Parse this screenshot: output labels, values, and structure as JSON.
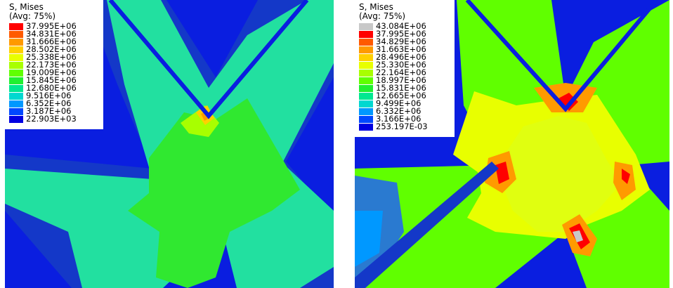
{
  "panels": [
    {
      "legend": {
        "title_line1": "S, Mises",
        "title_line2": "(Avg: 75%)",
        "labels": [
          "37.995E+06",
          "34.831E+06",
          "31.666E+06",
          "28.502E+06",
          "25.338E+06",
          "22.173E+06",
          "19.009E+06",
          "15.845E+06",
          "12.680E+06",
          "9.516E+06",
          "6.352E+06",
          "3.187E+06",
          "22.903E+03"
        ],
        "colors": [
          "#ff0000",
          "#ff5a00",
          "#ff9a00",
          "#ffd000",
          "#e8ff00",
          "#a8ff00",
          "#60ff00",
          "#20f030",
          "#00e890",
          "#00d8d0",
          "#0098ff",
          "#0048ff",
          "#0000e0"
        ]
      }
    },
    {
      "legend": {
        "title_line1": "S, Mises",
        "title_line2": "(Avg: 75%)",
        "labels": [
          "43.084E+06",
          "37.995E+06",
          "34.829E+06",
          "31.663E+06",
          "28.496E+06",
          "25.330E+06",
          "22.164E+06",
          "18.997E+06",
          "15.831E+06",
          "12.665E+06",
          "9.499E+06",
          "6.332E+06",
          "3.166E+06",
          "253.197E-03"
        ],
        "colors": [
          "#c8c8c8",
          "#ff0000",
          "#ff5a00",
          "#ff9a00",
          "#ffd000",
          "#e8ff00",
          "#a8ff00",
          "#60ff00",
          "#20f030",
          "#00e890",
          "#00d8d0",
          "#0098ff",
          "#0048ff",
          "#0000e0"
        ]
      }
    }
  ]
}
